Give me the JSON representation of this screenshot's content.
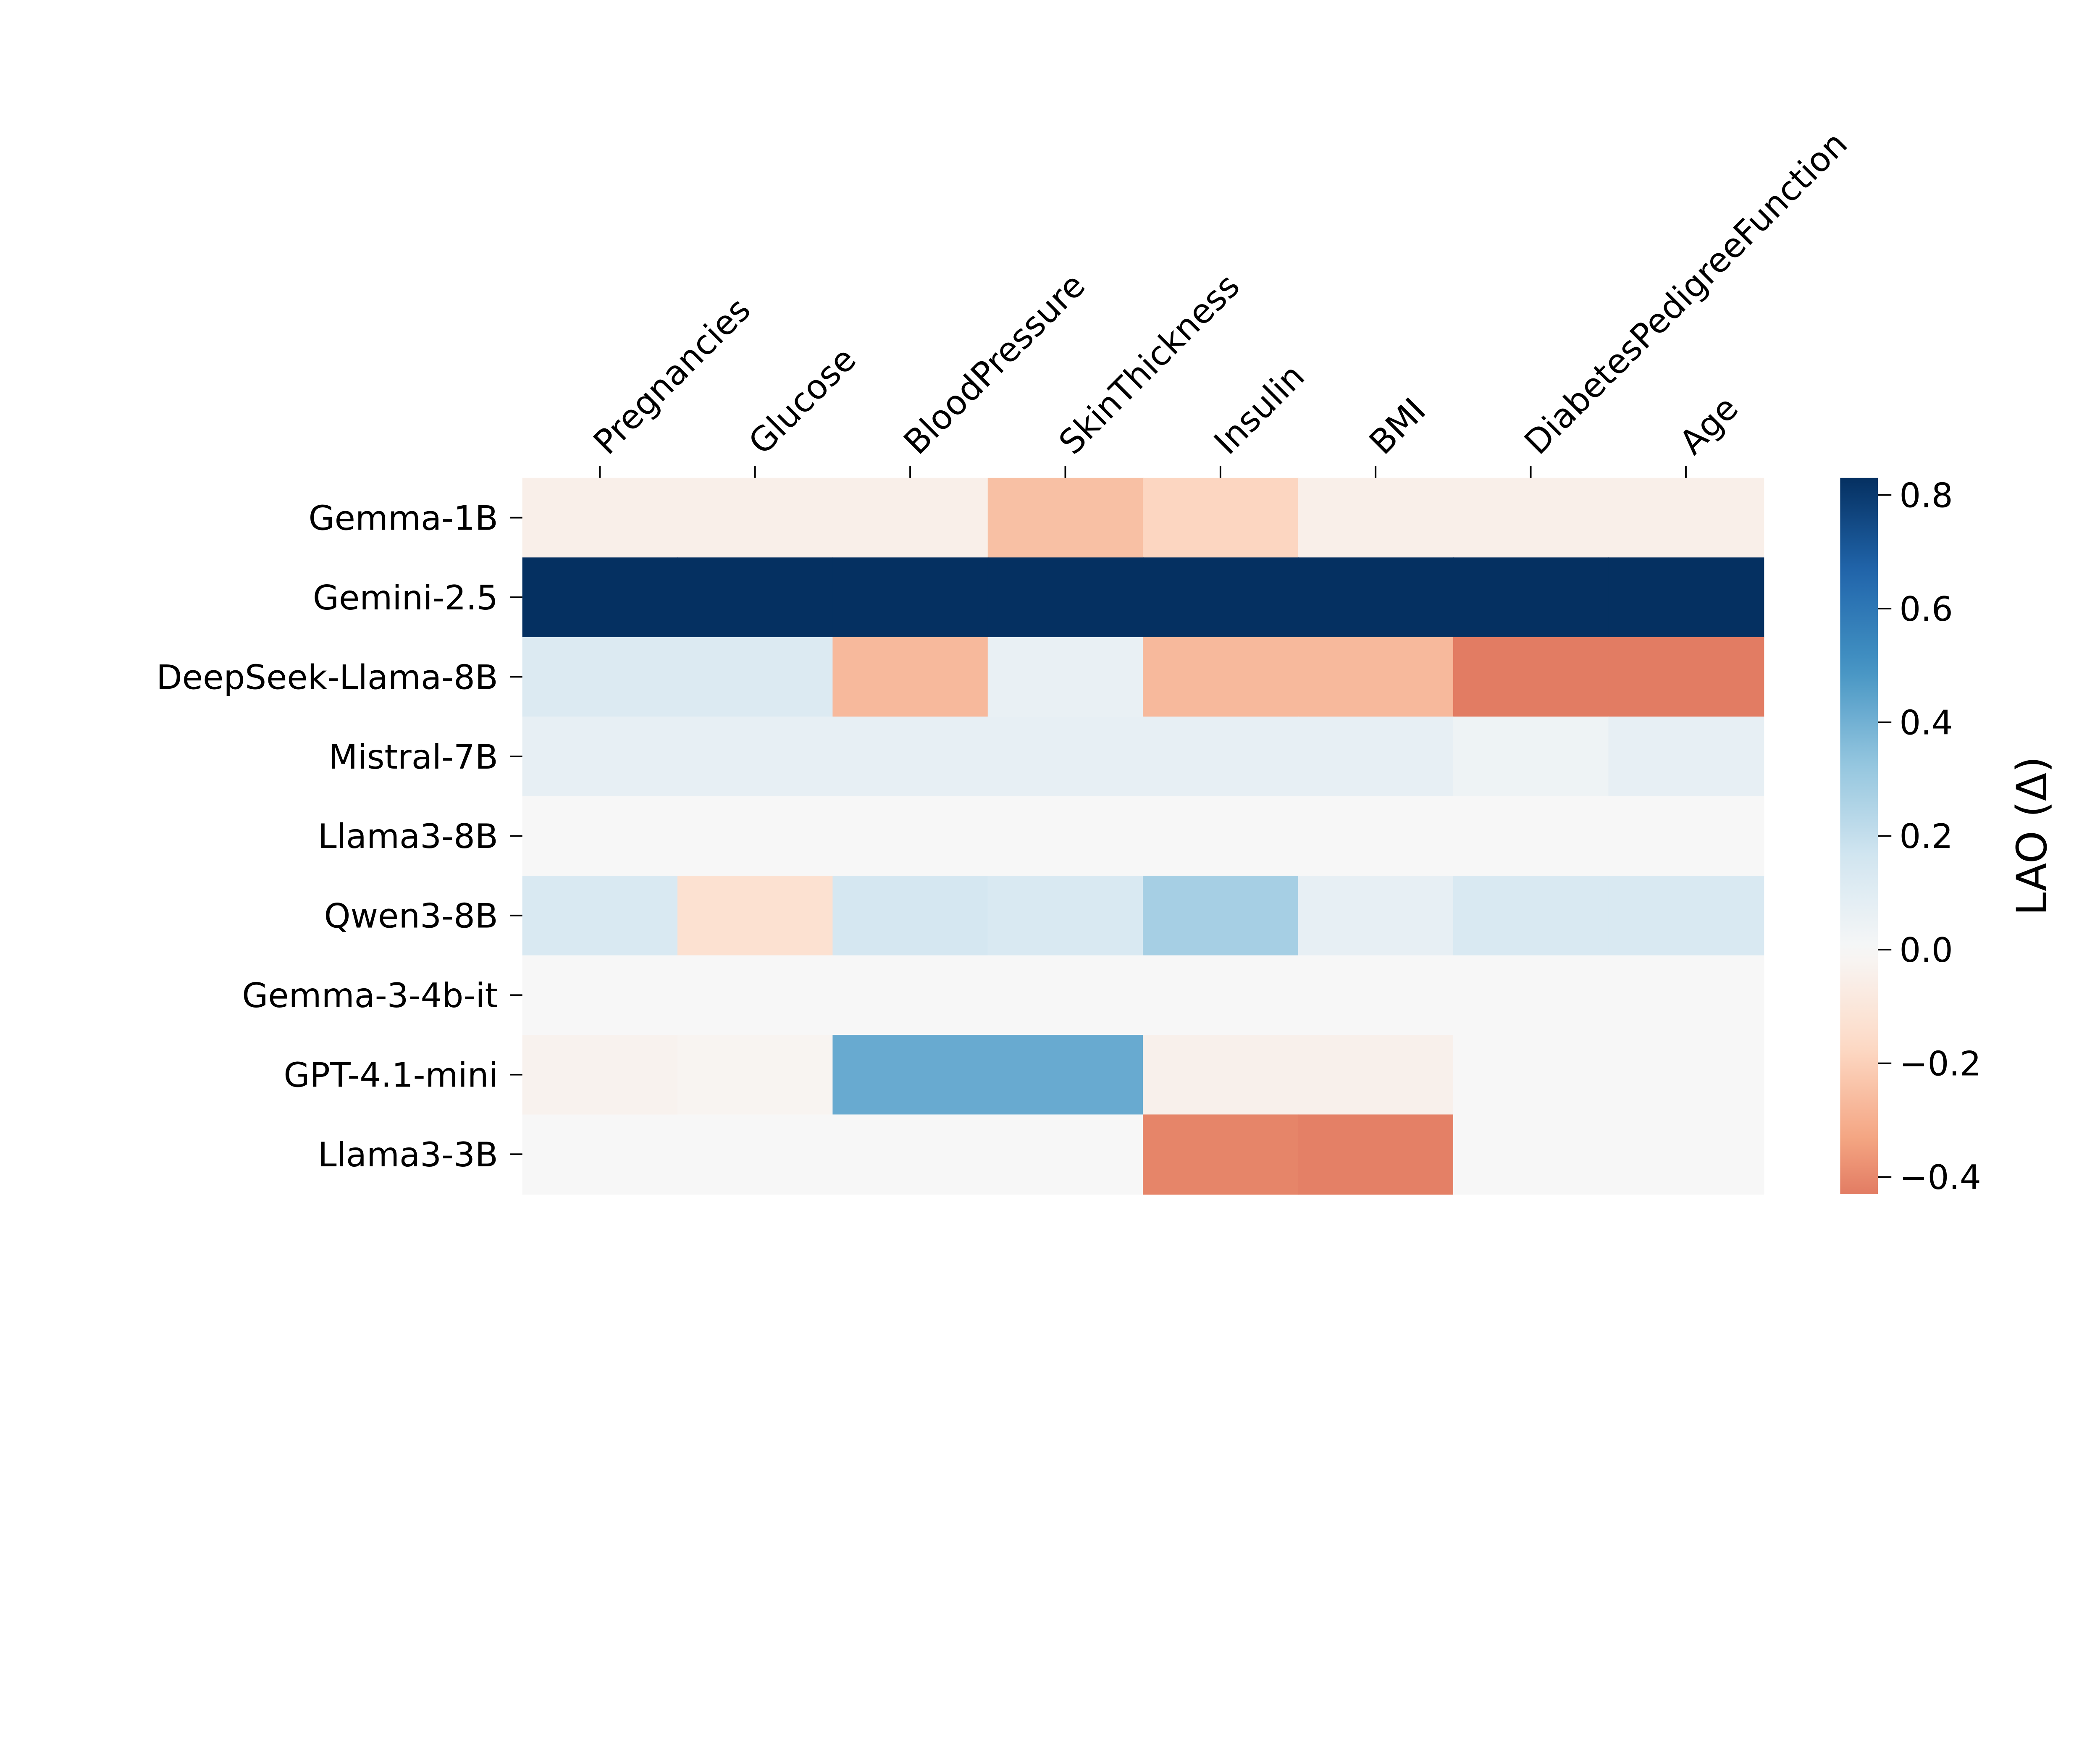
{
  "chart_data": {
    "type": "heatmap",
    "title": "",
    "xlabel": "",
    "ylabel": "",
    "colormap": "RdBu_r",
    "center": 0,
    "color_range": [
      -0.43,
      0.83
    ],
    "columns": [
      "Pregnancies",
      "Glucose",
      "BloodPressure",
      "SkinThickness",
      "Insulin",
      "BMI",
      "DiabetesPedigreeFunction",
      "Age"
    ],
    "rows": [
      "Gemma-1B",
      "Gemini-2.5",
      "DeepSeek-Llama-8B",
      "Mistral-7B",
      "Llama3-8B",
      "Qwen3-8B",
      "Gemma-3-4b-it",
      "GPT-4.1-mini",
      "Llama3-3B"
    ],
    "values": [
      [
        -0.05,
        -0.05,
        -0.05,
        -0.25,
        -0.18,
        -0.05,
        -0.05,
        -0.05
      ],
      [
        0.83,
        0.83,
        0.83,
        0.83,
        0.83,
        0.83,
        0.83,
        0.83
      ],
      [
        0.12,
        0.12,
        -0.27,
        0.06,
        -0.27,
        -0.27,
        -0.43,
        -0.43
      ],
      [
        0.07,
        0.07,
        0.07,
        0.07,
        0.07,
        0.07,
        0.04,
        0.07
      ],
      [
        0,
        0,
        0,
        0,
        0,
        0,
        0,
        0
      ],
      [
        0.13,
        -0.13,
        0.15,
        0.13,
        0.28,
        0.07,
        0.13,
        0.13
      ],
      [
        0,
        0,
        0,
        0,
        0,
        0,
        0,
        0
      ],
      [
        -0.03,
        -0.02,
        0.42,
        0.42,
        -0.04,
        -0.04,
        0,
        0
      ],
      [
        0,
        0,
        0,
        0,
        -0.41,
        -0.42,
        0,
        0
      ]
    ],
    "colorbar": {
      "label": "LAO (Δ)",
      "ticks": [
        0.8,
        0.6,
        0.4,
        0.2,
        0.0,
        -0.2,
        -0.4
      ],
      "tick_labels": [
        "0.8",
        "0.6",
        "0.4",
        "0.2",
        "0.0",
        "−0.2",
        "−0.4"
      ]
    }
  }
}
